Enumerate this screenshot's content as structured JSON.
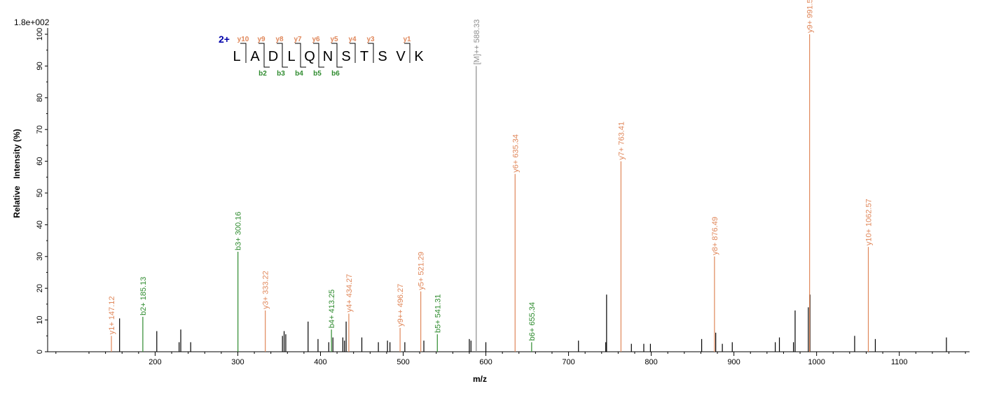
{
  "chart_data": {
    "type": "bar",
    "intensity_scale": "1.8e+002",
    "xlabel": "m/z",
    "ylabel": "Relative   Intensity (%)",
    "xlim": [
      70,
      1185
    ],
    "ylim": [
      0,
      100
    ],
    "x_ticks": [
      200,
      300,
      400,
      500,
      600,
      700,
      800,
      900,
      1000,
      1100
    ],
    "y_ticks": [
      0,
      10,
      20,
      30,
      40,
      50,
      60,
      70,
      80,
      90,
      100
    ],
    "colors": {
      "y_ion": "#e0875a",
      "b_ion": "#2e8b2e",
      "precursor": "#8c8c8c",
      "unassigned": "#000000",
      "charge": "#0000aa"
    },
    "peptide": {
      "charge": "2+",
      "sequence": [
        "L",
        "A",
        "D",
        "L",
        "Q",
        "N",
        "S",
        "T",
        "S",
        "V",
        "K"
      ],
      "y_ions": [
        {
          "label": "y10",
          "after": 1
        },
        {
          "label": "y9",
          "after": 2
        },
        {
          "label": "y8",
          "after": 3
        },
        {
          "label": "y7",
          "after": 4
        },
        {
          "label": "y6",
          "after": 5
        },
        {
          "label": "y5",
          "after": 6
        },
        {
          "label": "y4",
          "after": 7
        },
        {
          "label": "y3",
          "after": 8
        },
        {
          "label": "y1",
          "after": 10
        }
      ],
      "b_ions": [
        {
          "label": "b2",
          "after": 2
        },
        {
          "label": "b3",
          "after": 3
        },
        {
          "label": "b4",
          "after": 4
        },
        {
          "label": "b5",
          "after": 5
        },
        {
          "label": "b6",
          "after": 6
        }
      ]
    },
    "annotated_peaks": [
      {
        "mz": 147.12,
        "intensity": 5,
        "label": "y1+ 147.12",
        "type": "y"
      },
      {
        "mz": 185.13,
        "intensity": 11,
        "label": "b2+ 185.13",
        "type": "b"
      },
      {
        "mz": 300.16,
        "intensity": 31.5,
        "label": "b3+ 300.16",
        "type": "b"
      },
      {
        "mz": 333.22,
        "intensity": 13,
        "label": "y3+ 333.22",
        "type": "y"
      },
      {
        "mz": 413.25,
        "intensity": 7,
        "label": "b4+ 413.25",
        "type": "b"
      },
      {
        "mz": 434.27,
        "intensity": 12,
        "label": "y4+ 434.27",
        "type": "y"
      },
      {
        "mz": 496.27,
        "intensity": 7.5,
        "label": "y9++ 496.27",
        "type": "y"
      },
      {
        "mz": 521.29,
        "intensity": 19,
        "label": "y5+ 521.29",
        "type": "y"
      },
      {
        "mz": 541.31,
        "intensity": 5.5,
        "label": "b5+ 541.31",
        "type": "b"
      },
      {
        "mz": 588.33,
        "intensity": 90,
        "label": "[M]++ 588.33",
        "type": "precursor"
      },
      {
        "mz": 635.34,
        "intensity": 56,
        "label": "y6+ 635.34",
        "type": "y"
      },
      {
        "mz": 655.34,
        "intensity": 3,
        "label": "b6+ 655.34",
        "type": "b"
      },
      {
        "mz": 763.41,
        "intensity": 60,
        "label": "y7+ 763.41",
        "type": "y"
      },
      {
        "mz": 876.49,
        "intensity": 30,
        "label": "y8+ 876.49",
        "type": "y"
      },
      {
        "mz": 991.52,
        "intensity": 100,
        "label": "y9+ 991.52",
        "type": "y"
      },
      {
        "mz": 1062.57,
        "intensity": 33,
        "label": "y10+ 1062.57",
        "type": "y"
      }
    ],
    "unassigned_peaks": [
      [
        157,
        10.5
      ],
      [
        202,
        6.5
      ],
      [
        229,
        3
      ],
      [
        231,
        7
      ],
      [
        243,
        3
      ],
      [
        354,
        5
      ],
      [
        356,
        6.5
      ],
      [
        358,
        5.5
      ],
      [
        385,
        9.5
      ],
      [
        397,
        4
      ],
      [
        410,
        3
      ],
      [
        415,
        4.5
      ],
      [
        427,
        4.5
      ],
      [
        429,
        3.5
      ],
      [
        431,
        9.5
      ],
      [
        450,
        4.5
      ],
      [
        470,
        3
      ],
      [
        481,
        3.5
      ],
      [
        484,
        3
      ],
      [
        502,
        3
      ],
      [
        525,
        3.5
      ],
      [
        580,
        4
      ],
      [
        582,
        3.5
      ],
      [
        600,
        3
      ],
      [
        712,
        3.5
      ],
      [
        745,
        3
      ],
      [
        746,
        18
      ],
      [
        776,
        2.5
      ],
      [
        791,
        2.5
      ],
      [
        799,
        2.5
      ],
      [
        861,
        4
      ],
      [
        878,
        6
      ],
      [
        886,
        2.5
      ],
      [
        898,
        3
      ],
      [
        950,
        3
      ],
      [
        955,
        4.5
      ],
      [
        972,
        3
      ],
      [
        974,
        13
      ],
      [
        990,
        14
      ],
      [
        992,
        18
      ],
      [
        1046,
        5
      ],
      [
        1071,
        4
      ],
      [
        1157,
        4.5
      ]
    ]
  }
}
